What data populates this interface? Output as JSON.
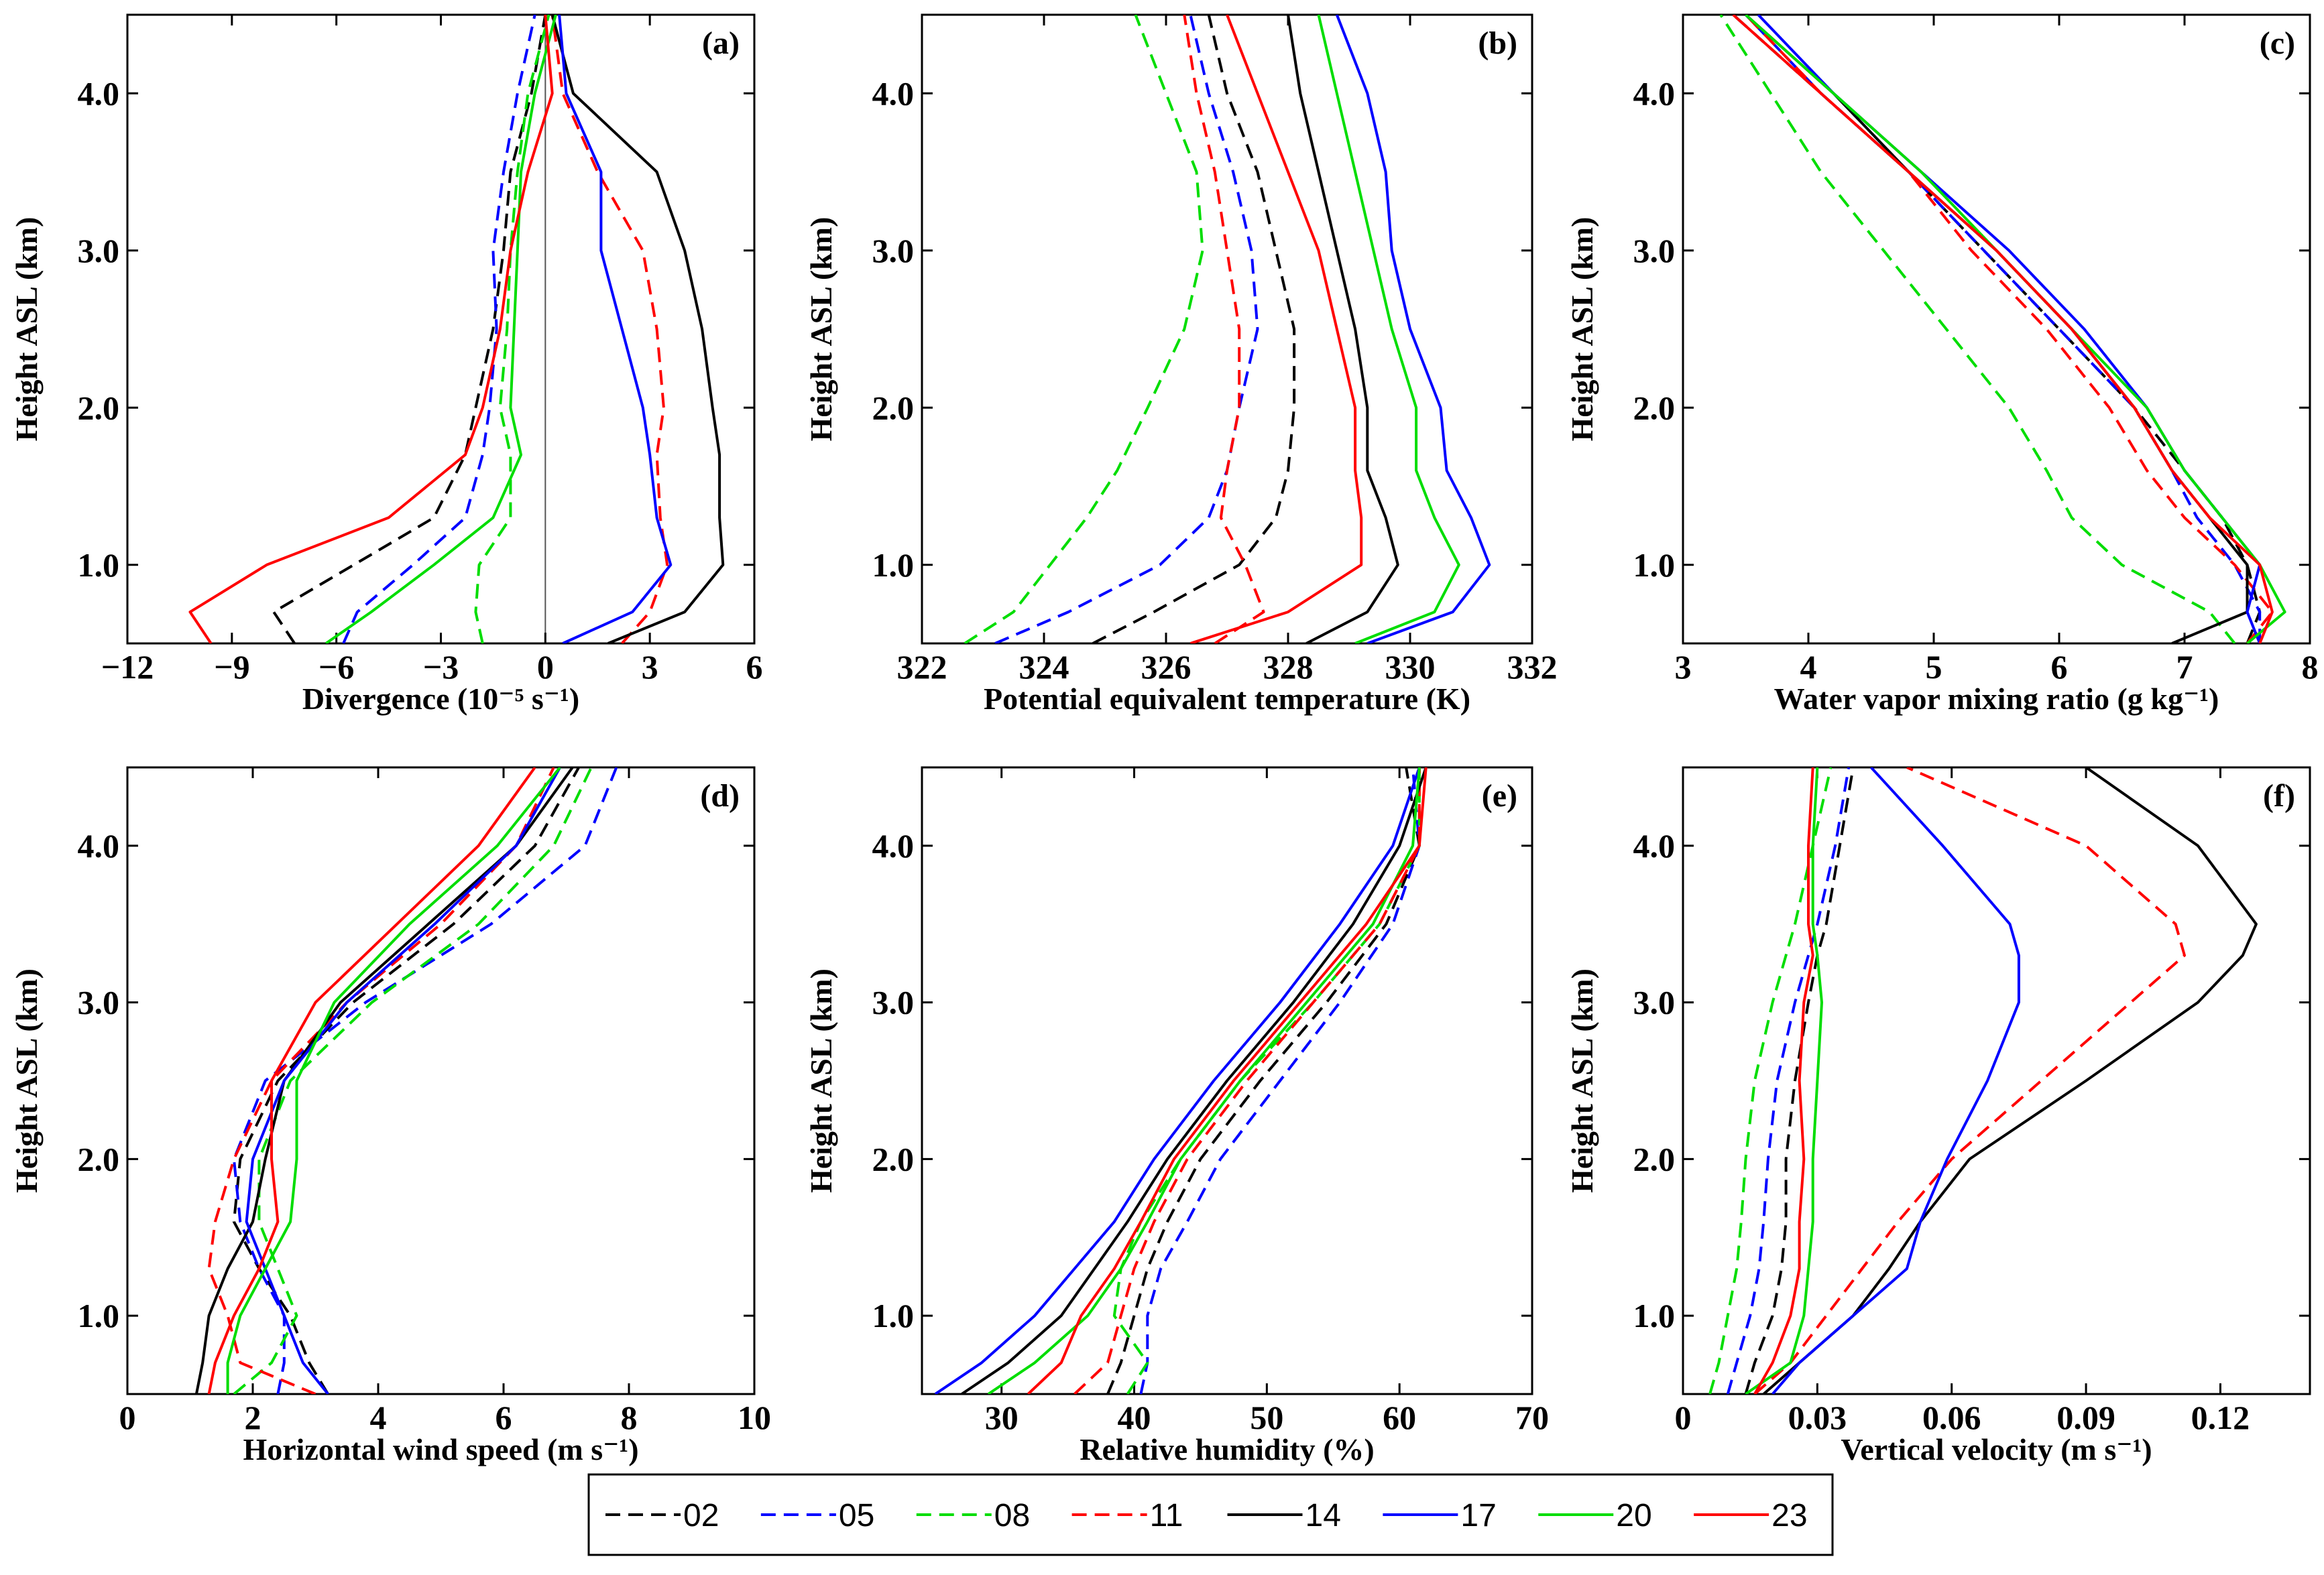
{
  "legend": {
    "entries": [
      {
        "name": "02",
        "color": "#000000",
        "dash": true
      },
      {
        "name": "05",
        "color": "#0000ff",
        "dash": true
      },
      {
        "name": "08",
        "color": "#00dd00",
        "dash": true
      },
      {
        "name": "11",
        "color": "#ff0000",
        "dash": true
      },
      {
        "name": "14",
        "color": "#000000",
        "dash": false
      },
      {
        "name": "17",
        "color": "#0000ff",
        "dash": false
      },
      {
        "name": "20",
        "color": "#00dd00",
        "dash": false
      },
      {
        "name": "23",
        "color": "#ff0000",
        "dash": false
      }
    ]
  },
  "chart_data": [
    {
      "panel": "(a)",
      "type": "line",
      "xlabel": "Divergence (10⁻⁵ s⁻¹)",
      "ylabel": "Height ASL (km)",
      "xlim": [
        -12,
        6
      ],
      "ylim": [
        0.5,
        4.5
      ],
      "xticks": [
        -12,
        -9,
        -6,
        -3,
        0,
        3,
        6
      ],
      "xticklabels": [
        "−12",
        "−9",
        "−6",
        "−3",
        "0",
        "3",
        "6"
      ],
      "yticks": [
        1,
        2,
        3,
        4
      ],
      "yticklabels": [
        "1.0",
        "2.0",
        "3.0",
        "4.0"
      ],
      "zero_line": true,
      "y": [
        0.5,
        0.7,
        1.0,
        1.3,
        1.7,
        2.0,
        2.5,
        3.0,
        3.5,
        4.0,
        4.5
      ],
      "series": [
        {
          "name": "02",
          "x": [
            -7.2,
            -7.8,
            -5.5,
            -3.2,
            -2.3,
            -2.0,
            -1.5,
            -1.2,
            -1.0,
            -0.4,
            0.0
          ]
        },
        {
          "name": "05",
          "x": [
            -5.8,
            -5.4,
            -3.8,
            -2.3,
            -1.8,
            -1.6,
            -1.4,
            -1.5,
            -1.2,
            -0.8,
            -0.3
          ]
        },
        {
          "name": "08",
          "x": [
            -1.8,
            -2.0,
            -1.9,
            -1.0,
            -1.0,
            -1.3,
            -1.1,
            -1.0,
            -0.8,
            -0.5,
            0.1
          ]
        },
        {
          "name": "11",
          "x": [
            2.2,
            3.0,
            3.5,
            3.3,
            3.2,
            3.4,
            3.2,
            2.8,
            1.5,
            0.5,
            0.2
          ]
        },
        {
          "name": "14",
          "x": [
            1.8,
            4.0,
            5.1,
            5.0,
            5.0,
            4.8,
            4.5,
            4.0,
            3.2,
            0.8,
            0.2
          ]
        },
        {
          "name": "17",
          "x": [
            0.5,
            2.5,
            3.6,
            3.2,
            3.0,
            2.8,
            2.2,
            1.6,
            1.6,
            0.6,
            0.4
          ]
        },
        {
          "name": "20",
          "x": [
            -6.3,
            -5.0,
            -3.2,
            -1.5,
            -0.7,
            -1.0,
            -0.9,
            -0.8,
            -0.7,
            -0.3,
            0.3
          ]
        },
        {
          "name": "23",
          "x": [
            -9.6,
            -10.2,
            -8.0,
            -4.5,
            -2.3,
            -1.8,
            -1.3,
            -1.0,
            -0.5,
            0.2,
            0.0
          ]
        }
      ]
    },
    {
      "panel": "(b)",
      "type": "line",
      "xlabel": "Potential equivalent temperature (K)",
      "ylabel": "Height ASL (km)",
      "xlim": [
        322,
        332
      ],
      "ylim": [
        0.5,
        4.5
      ],
      "xticks": [
        322,
        324,
        326,
        328,
        330,
        332
      ],
      "xticklabels": [
        "322",
        "324",
        "326",
        "328",
        "330",
        "332"
      ],
      "yticks": [
        1,
        2,
        3,
        4
      ],
      "yticklabels": [
        "1.0",
        "2.0",
        "3.0",
        "4.0"
      ],
      "y": [
        0.5,
        0.7,
        1.0,
        1.3,
        1.6,
        2.0,
        2.5,
        3.0,
        3.5,
        4.0,
        4.5
      ],
      "series": [
        {
          "name": "02",
          "x": [
            324.8,
            325.8,
            327.2,
            327.8,
            328.0,
            328.1,
            328.1,
            327.8,
            327.5,
            327.0,
            326.7
          ]
        },
        {
          "name": "05",
          "x": [
            323.2,
            324.4,
            325.9,
            326.7,
            327.0,
            327.2,
            327.5,
            327.4,
            327.1,
            326.7,
            326.4
          ]
        },
        {
          "name": "08",
          "x": [
            322.7,
            323.5,
            324.1,
            324.7,
            325.2,
            325.7,
            326.3,
            326.6,
            326.5,
            326.0,
            325.5
          ]
        },
        {
          "name": "11",
          "x": [
            326.8,
            327.6,
            327.3,
            326.9,
            327.0,
            327.2,
            327.2,
            327.0,
            326.8,
            326.5,
            326.3
          ]
        },
        {
          "name": "14",
          "x": [
            328.3,
            329.3,
            329.8,
            329.6,
            329.3,
            329.3,
            329.1,
            328.8,
            328.5,
            328.2,
            328.0
          ]
        },
        {
          "name": "17",
          "x": [
            329.3,
            330.7,
            331.3,
            331.0,
            330.6,
            330.5,
            330.0,
            329.7,
            329.6,
            329.3,
            328.8
          ]
        },
        {
          "name": "20",
          "x": [
            329.1,
            330.4,
            330.8,
            330.4,
            330.1,
            330.1,
            329.7,
            329.4,
            329.1,
            328.8,
            328.5
          ]
        },
        {
          "name": "23",
          "x": [
            326.4,
            328.0,
            329.2,
            329.2,
            329.1,
            329.1,
            328.8,
            328.5,
            328.0,
            327.5,
            327.0
          ]
        }
      ]
    },
    {
      "panel": "(c)",
      "type": "line",
      "xlabel": "Water vapor mixing ratio (g kg⁻¹)",
      "ylabel": "Height ASL (km)",
      "xlim": [
        3,
        8
      ],
      "ylim": [
        0.5,
        4.5
      ],
      "xticks": [
        3,
        4,
        5,
        6,
        7,
        8
      ],
      "xticklabels": [
        "3",
        "4",
        "5",
        "6",
        "7",
        "8"
      ],
      "yticks": [
        1,
        2,
        3,
        4
      ],
      "yticklabels": [
        "1.0",
        "2.0",
        "3.0",
        "4.0"
      ],
      "y": [
        0.5,
        0.7,
        1.0,
        1.3,
        1.6,
        2.0,
        2.5,
        3.0,
        3.5,
        4.0,
        4.5
      ],
      "series": [
        {
          "name": "02",
          "x": [
            7.5,
            7.6,
            7.5,
            7.3,
            7.0,
            6.6,
            6.0,
            5.4,
            4.8,
            4.1,
            3.4
          ]
        },
        {
          "name": "05",
          "x": [
            7.6,
            7.6,
            7.4,
            7.1,
            6.9,
            6.6,
            6.0,
            5.4,
            4.8,
            4.1,
            3.5
          ]
        },
        {
          "name": "08",
          "x": [
            7.4,
            7.2,
            6.5,
            6.1,
            5.9,
            5.6,
            5.1,
            4.6,
            4.1,
            3.7,
            3.3
          ]
        },
        {
          "name": "11",
          "x": [
            7.5,
            7.7,
            7.4,
            7.0,
            6.7,
            6.4,
            5.9,
            5.3,
            4.8,
            4.1,
            3.5
          ]
        },
        {
          "name": "14",
          "x": [
            6.9,
            7.5,
            7.5,
            7.2,
            6.9,
            6.6,
            6.1,
            5.5,
            4.8,
            4.2,
            3.5
          ]
        },
        {
          "name": "17",
          "x": [
            7.6,
            7.5,
            7.6,
            7.3,
            7.0,
            6.7,
            6.2,
            5.6,
            4.9,
            4.2,
            3.6
          ]
        },
        {
          "name": "20",
          "x": [
            7.5,
            7.8,
            7.6,
            7.3,
            7.0,
            6.7,
            6.1,
            5.5,
            4.9,
            4.2,
            3.5
          ]
        },
        {
          "name": "23",
          "x": [
            7.6,
            7.7,
            7.6,
            7.2,
            6.9,
            6.6,
            6.1,
            5.5,
            4.8,
            4.1,
            3.4
          ]
        }
      ]
    },
    {
      "panel": "(d)",
      "type": "line",
      "xlabel": "Horizontal wind speed (m s⁻¹)",
      "ylabel": "Height ASL (km)",
      "xlim": [
        0,
        10
      ],
      "ylim": [
        0.5,
        4.5
      ],
      "xticks": [
        0,
        2,
        4,
        6,
        8,
        10
      ],
      "xticklabels": [
        "0",
        "2",
        "4",
        "6",
        "8",
        "10"
      ],
      "yticks": [
        1,
        2,
        3,
        4
      ],
      "yticklabels": [
        "1.0",
        "2.0",
        "3.0",
        "4.0"
      ],
      "y": [
        0.5,
        0.7,
        1.0,
        1.3,
        1.6,
        2.0,
        2.5,
        3.0,
        3.5,
        4.0,
        4.5
      ],
      "series": [
        {
          "name": "02",
          "x": [
            3.2,
            2.9,
            2.6,
            2.1,
            1.7,
            1.8,
            2.4,
            3.6,
            5.2,
            6.5,
            7.2
          ]
        },
        {
          "name": "05",
          "x": [
            2.4,
            2.5,
            2.5,
            2.1,
            1.8,
            1.7,
            2.2,
            3.8,
            5.8,
            7.3,
            7.8
          ]
        },
        {
          "name": "08",
          "x": [
            1.7,
            2.3,
            2.7,
            2.4,
            2.1,
            2.1,
            2.6,
            3.9,
            5.6,
            6.8,
            7.4
          ]
        },
        {
          "name": "11",
          "x": [
            3.0,
            1.8,
            1.6,
            1.3,
            1.4,
            1.7,
            2.3,
            3.5,
            5.0,
            6.2,
            6.8
          ]
        },
        {
          "name": "14",
          "x": [
            1.1,
            1.2,
            1.3,
            1.6,
            2.0,
            2.2,
            2.5,
            3.4,
            4.8,
            6.2,
            7.1
          ]
        },
        {
          "name": "17",
          "x": [
            3.2,
            2.8,
            2.5,
            2.2,
            1.9,
            2.0,
            2.5,
            3.5,
            4.9,
            6.2,
            6.9
          ]
        },
        {
          "name": "20",
          "x": [
            1.6,
            1.6,
            1.8,
            2.2,
            2.6,
            2.7,
            2.7,
            3.3,
            4.5,
            5.9,
            6.9
          ]
        },
        {
          "name": "23",
          "x": [
            1.3,
            1.4,
            1.7,
            2.1,
            2.4,
            2.3,
            2.3,
            3.0,
            4.3,
            5.6,
            6.5
          ]
        }
      ]
    },
    {
      "panel": "(e)",
      "type": "line",
      "xlabel": "Relative humidity (%)",
      "ylabel": "Height ASL (km)",
      "xlim": [
        24,
        70
      ],
      "ylim": [
        0.5,
        4.5
      ],
      "xticks": [
        30,
        40,
        50,
        60,
        70
      ],
      "xticklabels": [
        "30",
        "40",
        "50",
        "60",
        "70"
      ],
      "yticks": [
        1,
        2,
        3,
        4
      ],
      "yticklabels": [
        "1.0",
        "2.0",
        "3.0",
        "4.0"
      ],
      "y": [
        0.5,
        0.7,
        1.0,
        1.3,
        1.6,
        2.0,
        2.5,
        3.0,
        3.5,
        4.0,
        4.5
      ],
      "series": [
        {
          "name": "02",
          "x": [
            38.0,
            39.0,
            40.0,
            41.0,
            42.5,
            45.0,
            49.5,
            54.5,
            59.0,
            61.5,
            60.5
          ]
        },
        {
          "name": "05",
          "x": [
            40.5,
            41.0,
            41.0,
            42.0,
            44.0,
            46.5,
            51.0,
            55.5,
            59.5,
            61.5,
            61.0
          ]
        },
        {
          "name": "08",
          "x": [
            39.5,
            41.0,
            38.5,
            39.0,
            40.5,
            43.5,
            48.0,
            53.5,
            58.5,
            61.5,
            61.5
          ]
        },
        {
          "name": "11",
          "x": [
            35.5,
            38.0,
            39.0,
            40.0,
            41.5,
            44.0,
            48.5,
            53.5,
            58.5,
            61.5,
            61.5
          ]
        },
        {
          "name": "14",
          "x": [
            27.0,
            30.5,
            34.5,
            37.0,
            39.5,
            42.5,
            47.0,
            52.0,
            56.5,
            60.0,
            62.0
          ]
        },
        {
          "name": "17",
          "x": [
            25.0,
            28.5,
            32.5,
            35.5,
            38.5,
            41.5,
            46.0,
            51.0,
            55.5,
            59.5,
            61.5
          ]
        },
        {
          "name": "20",
          "x": [
            29.0,
            32.5,
            36.5,
            39.0,
            41.0,
            43.5,
            48.0,
            53.0,
            58.0,
            61.0,
            61.5
          ]
        },
        {
          "name": "23",
          "x": [
            32.0,
            34.5,
            36.0,
            38.5,
            40.5,
            43.0,
            47.5,
            52.5,
            57.5,
            61.5,
            62.0
          ]
        }
      ]
    },
    {
      "panel": "(f)",
      "type": "line",
      "xlabel": "Vertical velocity (m s⁻¹)",
      "ylabel": "Height ASL (km)",
      "xlim": [
        0,
        0.14
      ],
      "ylim": [
        0.5,
        4.5
      ],
      "xticks": [
        0,
        0.03,
        0.06,
        0.09,
        0.12
      ],
      "xticklabels": [
        "0",
        "0.03",
        "0.06",
        "0.09",
        "0.12"
      ],
      "yticks": [
        1,
        2,
        3,
        4
      ],
      "yticklabels": [
        "1.0",
        "2.0",
        "3.0",
        "4.0"
      ],
      "y": [
        0.5,
        0.7,
        1.0,
        1.3,
        1.6,
        2.0,
        2.5,
        3.0,
        3.3,
        3.5,
        4.0,
        4.5
      ],
      "series": [
        {
          "name": "02",
          "x": [
            0.014,
            0.016,
            0.02,
            0.022,
            0.023,
            0.023,
            0.025,
            0.028,
            0.03,
            0.032,
            0.035,
            0.038
          ]
        },
        {
          "name": "05",
          "x": [
            0.01,
            0.012,
            0.015,
            0.017,
            0.018,
            0.019,
            0.021,
            0.025,
            0.028,
            0.03,
            0.034,
            0.037
          ]
        },
        {
          "name": "08",
          "x": [
            0.006,
            0.008,
            0.01,
            0.012,
            0.013,
            0.014,
            0.016,
            0.02,
            0.023,
            0.025,
            0.029,
            0.033
          ]
        },
        {
          "name": "11",
          "x": [
            0.016,
            0.024,
            0.032,
            0.04,
            0.048,
            0.06,
            0.08,
            0.1,
            0.112,
            0.11,
            0.09,
            0.05
          ]
        },
        {
          "name": "14",
          "x": [
            0.018,
            0.026,
            0.038,
            0.046,
            0.053,
            0.064,
            0.09,
            0.115,
            0.125,
            0.128,
            0.115,
            0.09
          ]
        },
        {
          "name": "17",
          "x": [
            0.02,
            0.026,
            0.038,
            0.05,
            0.053,
            0.059,
            0.068,
            0.075,
            0.075,
            0.073,
            0.058,
            0.042
          ]
        },
        {
          "name": "20",
          "x": [
            0.014,
            0.024,
            0.027,
            0.028,
            0.029,
            0.029,
            0.03,
            0.031,
            0.03,
            0.029,
            0.029,
            0.03
          ]
        },
        {
          "name": "23",
          "x": [
            0.016,
            0.02,
            0.024,
            0.026,
            0.026,
            0.027,
            0.026,
            0.027,
            0.029,
            0.028,
            0.028,
            0.029
          ]
        }
      ]
    }
  ]
}
